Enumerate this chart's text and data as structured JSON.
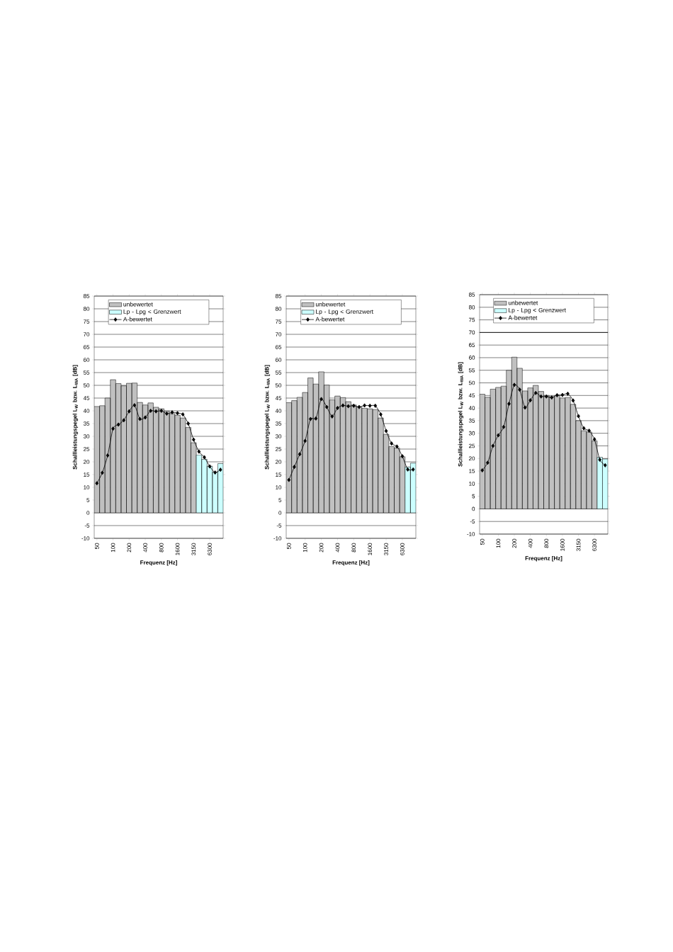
{
  "chart_data": [
    {
      "type": "bar",
      "categories": [
        "50",
        null,
        null,
        "100",
        null,
        null,
        "200",
        null,
        null,
        "400",
        null,
        null,
        "800",
        null,
        null,
        "1600",
        null,
        null,
        "3150",
        null,
        null,
        "6300",
        null,
        null
      ],
      "series": [
        {
          "name": "unbewertet",
          "color": "#c0c0c0",
          "values": [
            41.7,
            42,
            45,
            52.2,
            50.7,
            49.8,
            50.8,
            50.9,
            43.3,
            42.3,
            43.1,
            41.4,
            40.8,
            39.9,
            38.9,
            38.3,
            37.2,
            33.5,
            27.5,
            null,
            null,
            null,
            null,
            null
          ]
        },
        {
          "name": "Lp - Lpg < Grenzwert",
          "color": "#ccffff",
          "values": [
            null,
            null,
            null,
            null,
            null,
            null,
            null,
            null,
            null,
            null,
            null,
            null,
            null,
            null,
            null,
            null,
            null,
            null,
            null,
            22.7,
            21,
            18.3,
            16,
            19.3
          ]
        },
        {
          "name": "A-bewertet",
          "type": "line",
          "color": "#000000",
          "values": [
            11.6,
            15.7,
            22.5,
            33,
            34.6,
            36.3,
            39.8,
            42.2,
            36.8,
            37.4,
            40,
            39.8,
            40,
            38.9,
            39.4,
            39.1,
            38.6,
            35,
            28.7,
            24,
            21.8,
            18.2,
            15.8,
            16.9
          ]
        }
      ],
      "ylim": [
        -10,
        85
      ],
      "yticks": [
        -10,
        -5,
        0,
        5,
        10,
        15,
        20,
        25,
        30,
        35,
        40,
        45,
        50,
        55,
        60,
        65,
        70,
        75,
        80,
        85
      ],
      "xlabel": "Frequenz [Hz]",
      "ylabel": "Schallleistungspegel L$_{W}$ bzw. L$_{WA}$ [dB]",
      "grid": "y",
      "legend": "top",
      "marker": "diamond"
    },
    {
      "type": "bar",
      "categories": [
        "50",
        null,
        null,
        "100",
        null,
        null,
        "200",
        null,
        null,
        "400",
        null,
        null,
        "800",
        null,
        null,
        "1600",
        null,
        null,
        "3150",
        null,
        null,
        "6300",
        null,
        null
      ],
      "series": [
        {
          "name": "unbewertet",
          "color": "#c0c0c0",
          "values": [
            43.2,
            44,
            45.3,
            47.2,
            52.9,
            50.5,
            55.3,
            50.1,
            44.3,
            45.8,
            45.2,
            43.6,
            42.3,
            41.5,
            41,
            40.8,
            40.5,
            37.2,
            30.8,
            26,
            25.4,
            22,
            null,
            null
          ]
        },
        {
          "name": "Lp - Lpg < Grenzwert",
          "color": "#ccffff",
          "values": [
            null,
            null,
            null,
            null,
            null,
            null,
            null,
            null,
            null,
            null,
            null,
            null,
            null,
            null,
            null,
            null,
            null,
            null,
            null,
            null,
            null,
            null,
            18,
            19.5
          ]
        },
        {
          "name": "A-bewertet",
          "type": "line",
          "color": "#000000",
          "values": [
            12.9,
            18,
            23,
            28.2,
            36.8,
            37,
            44.6,
            41.5,
            37.8,
            41.1,
            42.1,
            41.8,
            42,
            41.5,
            42.1,
            42,
            42,
            38.6,
            32.1,
            27.2,
            26,
            22.2,
            17,
            17
          ]
        }
      ],
      "ylim": [
        -10,
        85
      ],
      "yticks": [
        -10,
        -5,
        0,
        5,
        10,
        15,
        20,
        25,
        30,
        35,
        40,
        45,
        50,
        55,
        60,
        65,
        70,
        75,
        80,
        85
      ],
      "xlabel": "Frequenz [Hz]",
      "ylabel": "Schallleistungspegel L$_{W}$ bzw. L$_{WA}$ [dB]",
      "grid": "y",
      "legend": "top",
      "marker": "diamond"
    },
    {
      "type": "bar",
      "categories": [
        "50",
        null,
        null,
        "100",
        null,
        null,
        "200",
        null,
        null,
        "400",
        null,
        null,
        "800",
        null,
        null,
        "1600",
        null,
        null,
        "3150",
        null,
        null,
        "6300",
        null,
        null
      ],
      "series": [
        {
          "name": "unbewertet",
          "color": "#c0c0c0",
          "values": [
            45.5,
            44.3,
            47.5,
            48.2,
            48.7,
            55,
            60.2,
            55.8,
            46.8,
            48,
            49,
            46.6,
            45,
            44.5,
            45,
            44,
            44.2,
            41.5,
            35,
            31,
            30.5,
            27,
            null,
            null
          ]
        },
        {
          "name": "Lp - Lpg < Grenzwert",
          "color": "#ccffff",
          "values": [
            null,
            null,
            null,
            null,
            null,
            null,
            null,
            null,
            null,
            null,
            null,
            null,
            null,
            null,
            null,
            null,
            null,
            null,
            null,
            null,
            null,
            null,
            20.5,
            19.8
          ]
        },
        {
          "name": "A-bewertet",
          "type": "line",
          "color": "#000000",
          "values": [
            15.3,
            18.3,
            25,
            29.2,
            32.5,
            41.7,
            49.2,
            47.3,
            40.2,
            43.1,
            46,
            44.6,
            44.6,
            44.2,
            45.1,
            45.2,
            45.7,
            43,
            36.8,
            32,
            31,
            27.6,
            19.5,
            17.3
          ]
        }
      ],
      "ylim": [
        -10,
        85
      ],
      "yticks": [
        -10,
        -5,
        0,
        5,
        10,
        15,
        20,
        25,
        30,
        35,
        40,
        45,
        50,
        55,
        60,
        65,
        70,
        75,
        80,
        85
      ],
      "ref_lines": [
        {
          "axis": "y",
          "value": 70,
          "color": "#000000"
        }
      ],
      "xlabel": "Frequenz [Hz]",
      "ylabel": "Schallleistungspegel L$_{W}$ bzw. L$_{WA}$ [dB]",
      "grid": "y",
      "legend": "top",
      "marker": "diamond"
    }
  ]
}
